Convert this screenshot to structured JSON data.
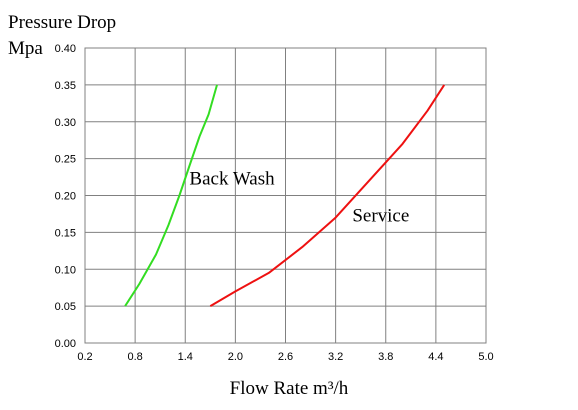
{
  "chart_data": {
    "type": "line",
    "title": "Pressure Drop",
    "ylabel": "Mpa",
    "xlabel": "Flow Rate m³/h",
    "xlim": [
      0.2,
      5.0
    ],
    "ylim": [
      0.0,
      0.4
    ],
    "x_ticks": [
      "0.2",
      "0.8",
      "1.4",
      "2.0",
      "2.6",
      "3.2",
      "3.8",
      "4.4",
      "5.0"
    ],
    "y_ticks": [
      "0.00",
      "0.05",
      "0.10",
      "0.15",
      "0.20",
      "0.25",
      "0.30",
      "0.35",
      "0.40"
    ],
    "grid": true,
    "series": [
      {
        "name": "Back Wash",
        "color": "#33dd22",
        "x": [
          0.68,
          0.85,
          1.05,
          1.2,
          1.33,
          1.45,
          1.57,
          1.68,
          1.78
        ],
        "y": [
          0.05,
          0.08,
          0.12,
          0.16,
          0.2,
          0.24,
          0.28,
          0.31,
          0.35
        ]
      },
      {
        "name": "Service",
        "color": "#ee1111",
        "x": [
          1.7,
          2.0,
          2.4,
          2.8,
          3.2,
          3.6,
          4.0,
          4.3,
          4.5
        ],
        "y": [
          0.05,
          0.07,
          0.095,
          0.13,
          0.17,
          0.22,
          0.27,
          0.315,
          0.35
        ]
      }
    ]
  }
}
